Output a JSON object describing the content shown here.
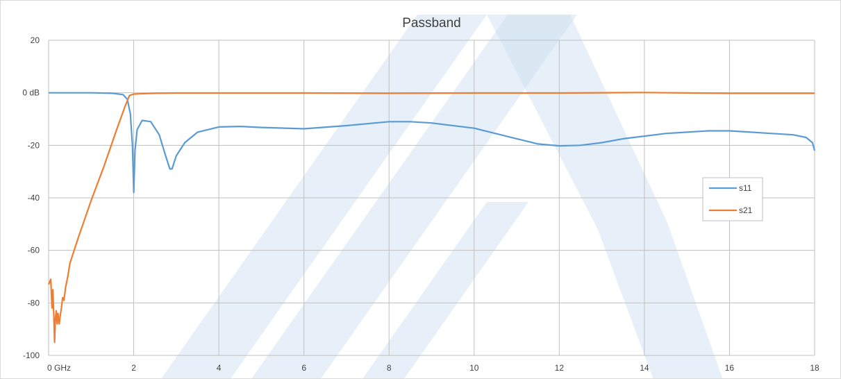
{
  "colors": {
    "s11": "#5b9bd5",
    "s21": "#ed7d31",
    "grid": "#bfbfbf",
    "watermark": "#c9ddf0"
  },
  "watermark_icon": "logo-watermark",
  "chart_data": {
    "type": "line",
    "title": "Passband",
    "xlabel": "",
    "ylabel": "",
    "xlim": [
      0,
      18
    ],
    "ylim": [
      -100,
      20
    ],
    "x_ticks": [
      0,
      2,
      4,
      6,
      8,
      10,
      12,
      14,
      16,
      18
    ],
    "x_tick_labels": [
      "0 GHz",
      "2",
      "4",
      "6",
      "8",
      "10",
      "12",
      "14",
      "16",
      "18"
    ],
    "y_ticks": [
      20,
      0,
      -20,
      -40,
      -60,
      -80,
      -100
    ],
    "y_tick_labels": [
      "20",
      "0 dB",
      "-20",
      "-40",
      "-60",
      "-80",
      "-100"
    ],
    "grid": true,
    "legend": "right",
    "series": [
      {
        "name": "s11",
        "x": [
          0,
          0.5,
          1.0,
          1.5,
          1.75,
          1.85,
          1.92,
          1.97,
          2.0,
          2.03,
          2.08,
          2.2,
          2.4,
          2.6,
          2.75,
          2.85,
          2.9,
          3.0,
          3.2,
          3.5,
          4.0,
          4.5,
          5.0,
          6.0,
          7.0,
          8.0,
          8.5,
          9.0,
          10.0,
          11.0,
          11.5,
          12.0,
          12.5,
          13.0,
          13.5,
          14.0,
          14.5,
          15.0,
          15.5,
          16.0,
          16.5,
          17.0,
          17.5,
          17.8,
          17.95,
          18.0
        ],
        "values": [
          0,
          0,
          0,
          -0.2,
          -0.7,
          -2.5,
          -8,
          -20,
          -38,
          -22,
          -14,
          -10.5,
          -11,
          -16,
          -24,
          -29,
          -29,
          -24,
          -19,
          -15,
          -13,
          -12.8,
          -13.2,
          -13.7,
          -12.5,
          -11,
          -11,
          -11.5,
          -13.5,
          -17.5,
          -19.5,
          -20.2,
          -20,
          -19,
          -17.5,
          -16.5,
          -15.5,
          -15,
          -14.5,
          -14.5,
          -15,
          -15.5,
          -16,
          -17,
          -19,
          -22
        ]
      },
      {
        "name": "s21",
        "x": [
          0,
          0.05,
          0.08,
          0.1,
          0.12,
          0.14,
          0.16,
          0.18,
          0.2,
          0.22,
          0.25,
          0.28,
          0.3,
          0.33,
          0.36,
          0.4,
          0.45,
          0.5,
          0.7,
          1.0,
          1.3,
          1.6,
          1.8,
          1.9,
          2.0,
          2.1,
          2.3,
          2.5,
          3.0,
          4.0,
          6.0,
          8.0,
          10.0,
          12.0,
          14.0,
          16.0,
          18.0
        ],
        "values": [
          -73,
          -71,
          -82,
          -75,
          -84,
          -95,
          -86,
          -83,
          -88,
          -84,
          -88,
          -84,
          -82,
          -78,
          -79,
          -74,
          -70,
          -65,
          -55,
          -41,
          -28,
          -14,
          -5,
          -1,
          -0.5,
          -0.4,
          -0.3,
          -0.2,
          -0.1,
          -0.1,
          -0.1,
          -0.2,
          -0.1,
          -0.1,
          0.1,
          -0.2,
          -0.2
        ]
      }
    ]
  }
}
